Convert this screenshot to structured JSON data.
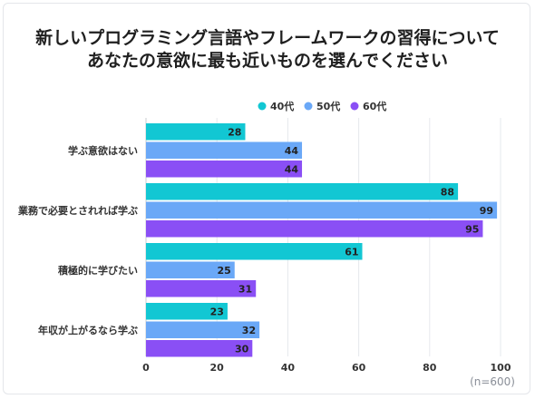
{
  "title_lines": [
    "新しいプログラミング言語やフレームワークの習得について",
    "あなたの意欲に最も近いものを選んでください"
  ],
  "note": "(n=600)",
  "chart_data": {
    "type": "bar",
    "orientation": "horizontal",
    "categories": [
      "学ぶ意欲はない",
      "業務で必要とされれば学ぶ",
      "積極的に学びたい",
      "年収が上がるなら学ぶ"
    ],
    "series": [
      {
        "name": "40代",
        "color": "#12c7d3",
        "values": [
          28,
          88,
          61,
          23
        ]
      },
      {
        "name": "50代",
        "color": "#6aa8f7",
        "values": [
          44,
          99,
          25,
          32
        ]
      },
      {
        "name": "60代",
        "color": "#8a4ff5",
        "values": [
          44,
          95,
          31,
          30
        ]
      }
    ],
    "xlim": [
      0,
      100
    ],
    "xticks": [
      0,
      20,
      40,
      60,
      80,
      100
    ],
    "grid": true,
    "legend": "top-right",
    "data_labels": true
  }
}
